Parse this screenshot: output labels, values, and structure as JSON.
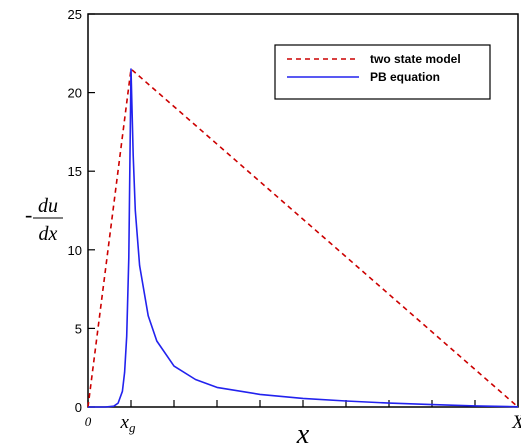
{
  "chart_data": {
    "type": "line",
    "xlabel": "x",
    "ylabel": {
      "prefix": "-",
      "numerator": "du",
      "denominator": "dx"
    },
    "ylim": [
      0,
      25
    ],
    "yticks": [
      0,
      5,
      10,
      15,
      20,
      25
    ],
    "xlim": [
      0,
      1
    ],
    "xtick_labels": [
      {
        "x": 0,
        "label": "0",
        "style": "plain"
      },
      {
        "x": 0.1,
        "label": "x",
        "sub": "g",
        "style": "math"
      },
      {
        "x": 1,
        "label": "X",
        "style": "math"
      }
    ],
    "minor_xticks": [
      0.2,
      0.3,
      0.4,
      0.5,
      0.6,
      0.7,
      0.8,
      0.9
    ],
    "grid": false,
    "legend_position": "top-right",
    "series": [
      {
        "name": "two state model",
        "color": "#cc0000",
        "dash": "dashed",
        "x": [
          0,
          0.1,
          1
        ],
        "y": [
          0,
          21.5,
          0
        ]
      },
      {
        "name": "PB equation",
        "color": "#2222ee",
        "dash": "solid",
        "x": [
          0,
          0.04,
          0.06,
          0.07,
          0.08,
          0.085,
          0.09,
          0.095,
          0.1,
          0.105,
          0.11,
          0.12,
          0.14,
          0.16,
          0.2,
          0.25,
          0.3,
          0.4,
          0.5,
          0.6,
          0.7,
          0.8,
          0.9,
          1.0
        ],
        "y": [
          0,
          0,
          0.05,
          0.25,
          1.0,
          2.2,
          4.5,
          9.5,
          21.5,
          16.0,
          12.5,
          9.0,
          5.8,
          4.2,
          2.6,
          1.75,
          1.25,
          0.8,
          0.55,
          0.38,
          0.25,
          0.15,
          0.07,
          0.01
        ]
      }
    ]
  }
}
